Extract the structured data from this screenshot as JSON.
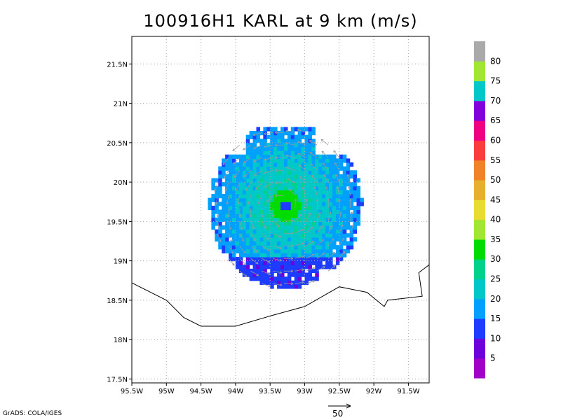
{
  "chart_data": {
    "type": "heatmap",
    "title": "100916H1 KARL at 9 km (m/s)",
    "xlabel": "",
    "ylabel": "",
    "xlim": [
      -95.5,
      -91.2
    ],
    "ylim": [
      17.45,
      21.85
    ],
    "x_ticks": [
      {
        "v": -95.5,
        "label": "95.5W"
      },
      {
        "v": -95.0,
        "label": "95W"
      },
      {
        "v": -94.5,
        "label": "94.5W"
      },
      {
        "v": -94.0,
        "label": "94W"
      },
      {
        "v": -93.5,
        "label": "93.5W"
      },
      {
        "v": -93.0,
        "label": "93W"
      },
      {
        "v": -92.5,
        "label": "92.5W"
      },
      {
        "v": -92.0,
        "label": "92W"
      },
      {
        "v": -91.5,
        "label": "91.5W"
      }
    ],
    "y_ticks": [
      {
        "v": 17.5,
        "label": "17.5N"
      },
      {
        "v": 18.0,
        "label": "18N"
      },
      {
        "v": 18.5,
        "label": "18.5N"
      },
      {
        "v": 19.0,
        "label": "19N"
      },
      {
        "v": 19.5,
        "label": "19.5N"
      },
      {
        "v": 20.0,
        "label": "20N"
      },
      {
        "v": 20.5,
        "label": "20.5N"
      },
      {
        "v": 21.0,
        "label": "21N"
      },
      {
        "v": 21.5,
        "label": "21.5N"
      }
    ],
    "grid": true,
    "legend_position": "right",
    "colorbar": {
      "labels": [
        "5",
        "10",
        "15",
        "20",
        "25",
        "30",
        "35",
        "40",
        "45",
        "50",
        "55",
        "60",
        "65",
        "70",
        "75",
        "80"
      ],
      "colors": [
        "#a000c8",
        "#6e00dc",
        "#1e3cff",
        "#00a0ff",
        "#00c8c8",
        "#00d28c",
        "#00dc00",
        "#a0e632",
        "#e6dc32",
        "#e6af2d",
        "#f08228",
        "#fa3c3c",
        "#f00082",
        "#8200dc",
        "#00c8c8",
        "#a0e632",
        "#aaaaaa"
      ]
    },
    "storm_center": {
      "lon": -93.3,
      "lat": 19.68
    },
    "coastline": [
      [
        -95.5,
        18.72
      ],
      [
        -95.0,
        18.5
      ],
      [
        -94.75,
        18.28
      ],
      [
        -94.5,
        18.17
      ],
      [
        -94.0,
        18.17
      ],
      [
        -93.5,
        18.3
      ],
      [
        -93.0,
        18.42
      ],
      [
        -92.5,
        18.67
      ],
      [
        -92.1,
        18.6
      ],
      [
        -91.85,
        18.42
      ],
      [
        -91.8,
        18.5
      ],
      [
        -91.3,
        18.55
      ],
      [
        -91.35,
        18.85
      ],
      [
        -91.2,
        18.95
      ]
    ],
    "vector_scale": {
      "label": "50"
    }
  },
  "footer": {
    "credit": "GrADS: COLA/IGES"
  }
}
